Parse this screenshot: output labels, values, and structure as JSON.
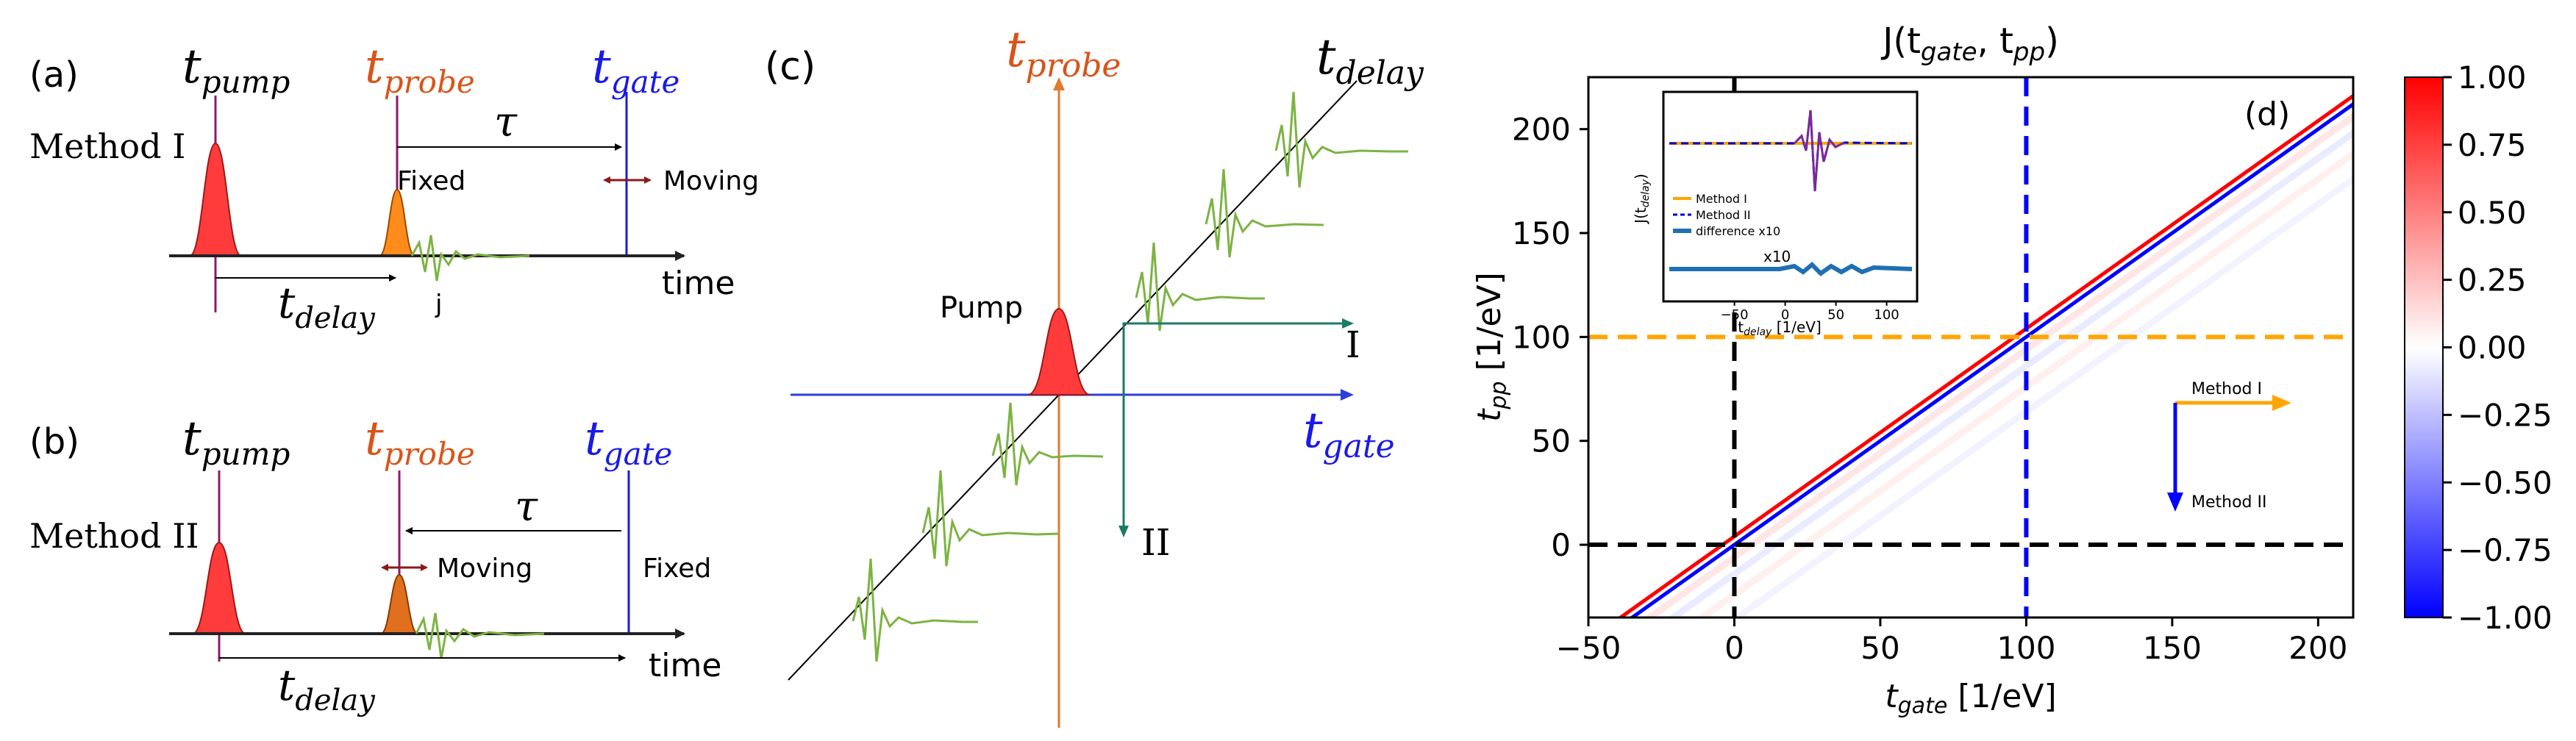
{
  "colors": {
    "probe": "#d9541a",
    "gate": "#1a1ae6",
    "pump_fill": "#ff3b3b",
    "probe_fill": "#ff8c1a",
    "probe_fill_b": "#e0701e",
    "marker": "#8b1a6b",
    "wave": "#7cb342",
    "arrow": "#1b7a6a",
    "method1": "#ffa500",
    "method2": "#0000ff"
  },
  "panel_a": {
    "tag": "(a)",
    "pump_label": "t",
    "pump_sub": "pump",
    "probe_label": "t",
    "probe_sub": "probe",
    "gate_label": "t",
    "gate_sub": "gate",
    "method": "Method I",
    "tau": "τ",
    "fixed": "Fixed",
    "moving": "Moving",
    "delay_label": "t",
    "delay_sub": "delay",
    "j": "j",
    "time": "time"
  },
  "panel_b": {
    "tag": "(b)",
    "pump_label": "t",
    "pump_sub": "pump",
    "probe_label": "t",
    "probe_sub": "probe",
    "gate_label": "t",
    "gate_sub": "gate",
    "method": "Method II",
    "tau": "τ",
    "fixed": "Fixed",
    "moving": "Moving",
    "delay_label": "t",
    "delay_sub": "delay",
    "time": "time"
  },
  "panel_c": {
    "tag": "(c)",
    "probe_label": "t",
    "probe_sub": "probe",
    "delay_label": "t",
    "delay_sub": "delay",
    "gate_label": "t",
    "gate_sub": "gate",
    "pump": "Pump",
    "arrow1": "I",
    "arrow2": "II"
  },
  "chart_data": {
    "type": "heatmap",
    "title": "J(t",
    "title_sub1": "gate",
    "title_mid": ", t",
    "title_sub2": "pp",
    "title_end": ")",
    "panel_tag": "(d)",
    "xlabel": "t",
    "xlabel_sub": "gate",
    "xlabel_unit": " [1/eV]",
    "ylabel": "t",
    "ylabel_sub": "pp",
    "ylabel_unit": " [1/eV]",
    "xlim": [
      -50,
      212
    ],
    "ylim": [
      -35,
      225
    ],
    "xticks": [
      -50,
      0,
      50,
      100,
      150,
      200
    ],
    "xtick_labels": [
      "−50",
      "0",
      "50",
      "100",
      "150",
      "200"
    ],
    "yticks": [
      0,
      50,
      100,
      150,
      200
    ],
    "ytick_labels": [
      "0",
      "50",
      "100",
      "150",
      "200"
    ],
    "hlines": [
      {
        "y": 100,
        "color": "#ffa500"
      },
      {
        "y": 0,
        "color": "#000000"
      }
    ],
    "vlines": [
      {
        "x": 0,
        "color": "#000000"
      },
      {
        "x": 100,
        "color": "#0000ff"
      }
    ],
    "diagonal_bands": [
      {
        "offset": 4,
        "value": 1.0
      },
      {
        "offset": 0,
        "value": -1.0
      },
      {
        "offset": -6,
        "value": 0.12
      },
      {
        "offset": -14,
        "value": -0.1
      },
      {
        "offset": -24,
        "value": 0.08
      },
      {
        "offset": -36,
        "value": -0.06
      }
    ],
    "colorbar": {
      "range": [
        -1.0,
        1.0
      ],
      "ticks": [
        1.0,
        0.75,
        0.5,
        0.25,
        0.0,
        -0.25,
        -0.5,
        -0.75,
        -1.0
      ],
      "tick_labels": [
        "1.00",
        "0.75",
        "0.50",
        "0.25",
        "0.00",
        "−0.25",
        "−0.50",
        "−0.75",
        "−1.00"
      ]
    },
    "method_arrows": {
      "method1": "Method I",
      "method2": "Method II"
    },
    "inset": {
      "type": "line",
      "ylabel": "J(t",
      "ylabel_sub": "delay",
      "ylabel_end": ")",
      "xlabel": "t",
      "xlabel_sub": "delay",
      "xlabel_unit": " [1/eV]",
      "xlim": [
        -120,
        130
      ],
      "xticks": [
        -50,
        0,
        50,
        100
      ],
      "xtick_labels": [
        "−50",
        "0",
        "50",
        "100"
      ],
      "annotation": "x10",
      "legend": [
        "Method I",
        "Method II",
        "difference x10"
      ]
    }
  }
}
